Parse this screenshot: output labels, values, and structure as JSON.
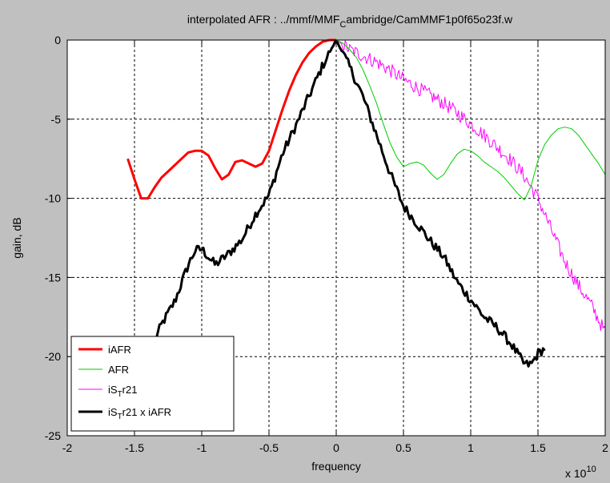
{
  "chart_data": {
    "type": "line",
    "title": "interpolated AFR : ../mmf/MMF",
    "title_subscript": "C",
    "title_rest": "ambridge/CamMMF1p0f65o23f.w",
    "xlabel": "frequency",
    "ylabel": "gain, dB",
    "x_exponent_label": "x 10",
    "x_exponent_power": "10",
    "xlim": [
      -20000000000.0,
      20000000000.0
    ],
    "ylim": [
      -25,
      0
    ],
    "xticks": [
      -20000000000.0,
      -15000000000.0,
      -10000000000.0,
      -5000000000.0,
      0,
      5000000000.0,
      10000000000.0,
      15000000000.0,
      20000000000.0
    ],
    "xtick_labels": [
      "-2",
      "-1.5",
      "-1",
      "-0.5",
      "0",
      "0.5",
      "1",
      "1.5",
      "2"
    ],
    "yticks": [
      0,
      -5,
      -10,
      -15,
      -20,
      -25
    ],
    "ytick_labels": [
      "0",
      "-5",
      "-10",
      "-15",
      "-20",
      "-25"
    ],
    "grid": true,
    "legend_position": "bottom-left",
    "series": [
      {
        "name": "iAFR",
        "color": "#ff0000",
        "noise": 0,
        "x": [
          -15500000000.0,
          -15000000000.0,
          -14500000000.0,
          -14000000000.0,
          -13500000000.0,
          -13000000000.0,
          -12500000000.0,
          -12000000000.0,
          -11500000000.0,
          -11000000000.0,
          -10500000000.0,
          -10000000000.0,
          -9500000000.0,
          -9000000000.0,
          -8500000000.0,
          -8000000000.0,
          -7500000000.0,
          -7000000000.0,
          -6500000000.0,
          -6000000000.0,
          -5500000000.0,
          -5000000000.0,
          -4500000000.0,
          -4000000000.0,
          -3500000000.0,
          -3000000000.0,
          -2500000000.0,
          -2000000000.0,
          -1500000000.0,
          -1000000000.0,
          -500000000.0,
          0
        ],
        "y": [
          -7.5,
          -8.8,
          -10.0,
          -10.0,
          -9.3,
          -8.7,
          -8.3,
          -7.9,
          -7.5,
          -7.1,
          -7.0,
          -7.0,
          -7.3,
          -8.1,
          -8.8,
          -8.5,
          -7.7,
          -7.6,
          -7.8,
          -8.0,
          -7.8,
          -7.0,
          -5.7,
          -4.4,
          -3.2,
          -2.2,
          -1.4,
          -0.8,
          -0.4,
          -0.1,
          0,
          0
        ]
      },
      {
        "name": "AFR",
        "color": "#00cc00",
        "noise": 0,
        "x": [
          0,
          500000000.0,
          1000000000.0,
          1500000000.0,
          2000000000.0,
          2500000000.0,
          3000000000.0,
          3500000000.0,
          4000000000.0,
          4500000000.0,
          5000000000.0,
          5500000000.0,
          6000000000.0,
          6500000000.0,
          7000000000.0,
          7500000000.0,
          8000000000.0,
          8500000000.0,
          9000000000.0,
          9500000000.0,
          10000000000.0,
          10500000000.0,
          11000000000.0,
          11500000000.0,
          12000000000.0,
          12500000000.0,
          13000000000.0,
          13500000000.0,
          14000000000.0,
          14500000000.0,
          15000000000.0,
          15500000000.0,
          16000000000.0,
          16500000000.0,
          17000000000.0,
          17500000000.0,
          18000000000.0,
          18500000000.0,
          19000000000.0,
          19500000000.0,
          20000000000.0
        ],
        "y": [
          0,
          -0.2,
          -0.6,
          -1.1,
          -1.9,
          -2.9,
          -4.0,
          -5.3,
          -6.5,
          -7.4,
          -8.0,
          -7.8,
          -7.7,
          -7.9,
          -8.4,
          -8.8,
          -8.5,
          -7.8,
          -7.2,
          -6.9,
          -7.0,
          -7.3,
          -7.7,
          -8.0,
          -8.3,
          -8.7,
          -9.2,
          -9.7,
          -10.1,
          -9.2,
          -7.6,
          -6.6,
          -6.0,
          -5.6,
          -5.5,
          -5.6,
          -6.0,
          -6.6,
          -7.2,
          -7.8,
          -8.5
        ]
      },
      {
        "name": "iS_Tr21",
        "color": "#ff00ff",
        "noise": 0.45,
        "x": [
          0,
          1000000000.0,
          2000000000.0,
          3000000000.0,
          4000000000.0,
          5000000000.0,
          6000000000.0,
          7000000000.0,
          8000000000.0,
          9000000000.0,
          10000000000.0,
          11000000000.0,
          12000000000.0,
          13000000000.0,
          14000000000.0,
          15000000000.0,
          16000000000.0,
          17000000000.0,
          18000000000.0,
          19000000000.0,
          20000000000.0
        ],
        "y": [
          0,
          -0.6,
          -1.0,
          -1.4,
          -1.9,
          -2.5,
          -3.0,
          -3.5,
          -4.0,
          -4.6,
          -5.3,
          -6.0,
          -6.8,
          -7.6,
          -8.6,
          -10.0,
          -12.0,
          -14.0,
          -15.5,
          -16.8,
          -18.5
        ]
      },
      {
        "name": "iS_Tr21 x iAFR",
        "color": "#000000",
        "noise": 0.3,
        "x": [
          -13500000000.0,
          -13000000000.0,
          -12000000000.0,
          -11000000000.0,
          -10500000000.0,
          -10000000000.0,
          -9000000000.0,
          -8000000000.0,
          -7000000000.0,
          -6000000000.0,
          -5000000000.0,
          -4000000000.0,
          -3000000000.0,
          -2000000000.0,
          -1000000000.0,
          0,
          1000000000.0,
          2000000000.0,
          3000000000.0,
          4000000000.0,
          5000000000.0,
          6000000000.0,
          7000000000.0,
          8000000000.0,
          9000000000.0,
          10000000000.0,
          11000000000.0,
          12000000000.0,
          13000000000.0,
          14000000000.0,
          14500000000.0,
          15000000000.0,
          15500000000.0
        ],
        "y": [
          -19.0,
          -18.0,
          -16.5,
          -14.2,
          -13.3,
          -13.2,
          -14.2,
          -13.5,
          -12.6,
          -11.0,
          -9.8,
          -7.2,
          -5.4,
          -3.5,
          -1.6,
          0,
          -1.7,
          -3.6,
          -6.0,
          -8.4,
          -10.5,
          -11.6,
          -12.7,
          -13.7,
          -15.3,
          -16.4,
          -17.5,
          -18.2,
          -19.2,
          -20.5,
          -20.5,
          -19.8,
          -19.5
        ]
      }
    ]
  },
  "legend": {
    "items": [
      {
        "text": "iAFR",
        "sub": "",
        "rest": ""
      },
      {
        "text": "AFR",
        "sub": "",
        "rest": ""
      },
      {
        "text": "iS",
        "sub": "T",
        "rest": "r21"
      },
      {
        "text": "iS",
        "sub": "T",
        "rest": "r21 x iAFR"
      }
    ]
  }
}
